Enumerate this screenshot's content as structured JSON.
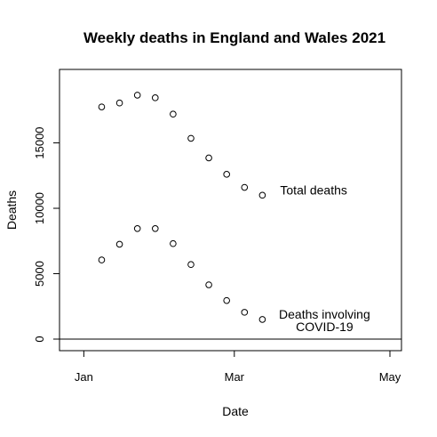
{
  "chart_data": {
    "type": "scatter",
    "title": "Weekly deaths in England and Wales 2021",
    "xlabel": "Date",
    "ylabel": "Deaths",
    "x_ticks": [
      {
        "date": "2021-01-01",
        "label": "Jan"
      },
      {
        "date": "2021-03-01",
        "label": "Mar"
      },
      {
        "date": "2021-05-01",
        "label": "May"
      }
    ],
    "y_ticks": [
      0,
      5000,
      10000,
      15000
    ],
    "xlim": [
      "2020-12-27",
      "2021-05-01"
    ],
    "ylim": [
      0,
      19800
    ],
    "hline_y": 0,
    "series": [
      {
        "annotation": "Total deaths",
        "x": [
          "2021-01-08",
          "2021-01-15",
          "2021-01-22",
          "2021-01-29",
          "2021-02-05",
          "2021-02-12",
          "2021-02-19",
          "2021-02-26",
          "2021-03-05",
          "2021-03-12"
        ],
        "y": [
          17750,
          18050,
          18650,
          18450,
          17200,
          15350,
          13850,
          12600,
          11600,
          11000
        ]
      },
      {
        "annotation": "Deaths involving COVID-19",
        "annotation_lines": [
          "Deaths involving",
          "COVID-19"
        ],
        "x": [
          "2021-01-08",
          "2021-01-15",
          "2021-01-22",
          "2021-01-29",
          "2021-02-05",
          "2021-02-12",
          "2021-02-19",
          "2021-02-26",
          "2021-03-05",
          "2021-03-12"
        ],
        "y": [
          6050,
          7250,
          8450,
          8450,
          7300,
          5700,
          4150,
          2950,
          2050,
          1500
        ]
      }
    ],
    "grid": false,
    "legend": "none"
  }
}
